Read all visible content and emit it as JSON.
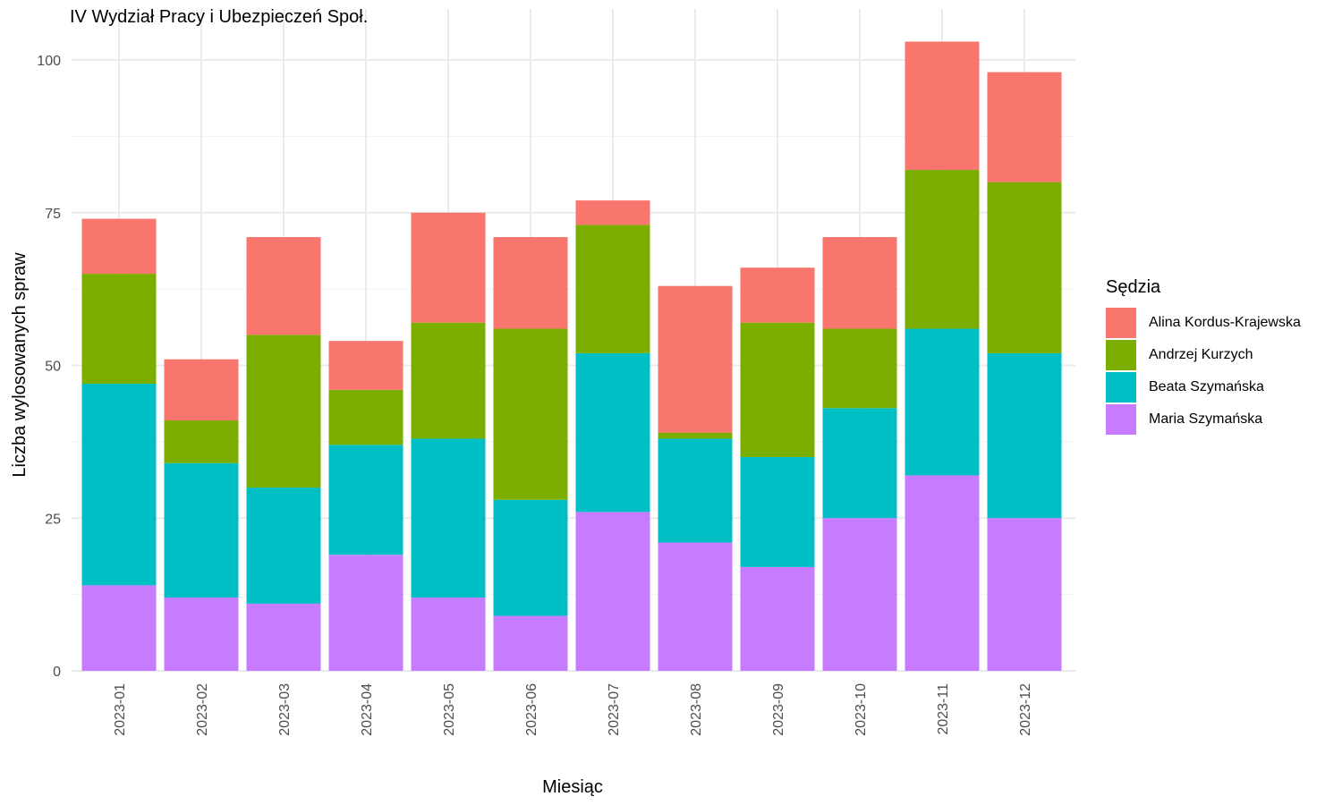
{
  "chart_data": {
    "type": "bar",
    "stacked": true,
    "title": "IV Wydział Pracy i Ubezpieczeń Społ.",
    "xlabel": "Miesiąc",
    "ylabel": "Liczba wylosowanych spraw",
    "ylim": [
      0,
      105
    ],
    "yticks": [
      0,
      25,
      50,
      75,
      100
    ],
    "grid": true,
    "legend_title": "Sędzia",
    "legend_position": "right",
    "categories": [
      "2023-01",
      "2023-02",
      "2023-03",
      "2023-04",
      "2023-05",
      "2023-06",
      "2023-07",
      "2023-08",
      "2023-09",
      "2023-10",
      "2023-11",
      "2023-12"
    ],
    "series": [
      {
        "name": "Maria Szymańska",
        "color": "#C77CFF",
        "values": [
          14,
          12,
          11,
          19,
          12,
          9,
          26,
          21,
          17,
          25,
          32,
          25
        ]
      },
      {
        "name": "Beata Szymańska",
        "color": "#00BFC4",
        "values": [
          33,
          22,
          19,
          18,
          26,
          19,
          26,
          17,
          18,
          18,
          24,
          27
        ]
      },
      {
        "name": "Andrzej Kurzych",
        "color": "#7CAE00",
        "values": [
          18,
          7,
          25,
          9,
          19,
          28,
          21,
          1,
          22,
          13,
          26,
          28
        ]
      },
      {
        "name": "Alina Kordus-Krajewska",
        "color": "#F8766D",
        "values": [
          9,
          10,
          16,
          8,
          18,
          15,
          4,
          24,
          9,
          15,
          21,
          18
        ]
      }
    ],
    "legend_order": [
      "Alina Kordus-Krajewska",
      "Andrzej Kurzych",
      "Beata Szymańska",
      "Maria Szymańska"
    ]
  }
}
